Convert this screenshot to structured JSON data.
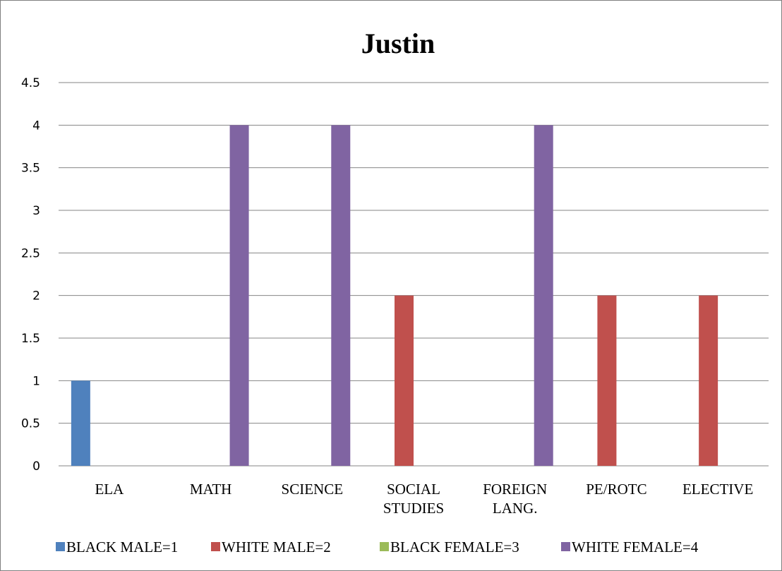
{
  "chart_data": {
    "type": "bar",
    "title": "Justin",
    "xlabel": "",
    "ylabel": "",
    "ylim": [
      0,
      4.5
    ],
    "yticks": [
      "0",
      "0.5",
      "1",
      "1.5",
      "2",
      "2.5",
      "3",
      "3.5",
      "4",
      "4.5"
    ],
    "grid": true,
    "legend_position": "bottom",
    "categories": [
      [
        "ELA"
      ],
      [
        "MATH"
      ],
      [
        "SCIENCE"
      ],
      [
        "SOCIAL",
        "STUDIES"
      ],
      [
        "FOREIGN",
        "LANG."
      ],
      [
        "PE/ROTC"
      ],
      [
        "ELECTIVE"
      ]
    ],
    "series": [
      {
        "name": "BLACK MALE=1",
        "color": "#4f81bd",
        "values": [
          1,
          0,
          0,
          0,
          0,
          0,
          0
        ]
      },
      {
        "name": "WHITE MALE=2",
        "color": "#c0504d",
        "values": [
          0,
          0,
          0,
          2,
          0,
          2,
          2
        ]
      },
      {
        "name": "BLACK FEMALE=3",
        "color": "#9bbb59",
        "values": [
          0,
          0,
          0,
          0,
          0,
          0,
          0
        ]
      },
      {
        "name": "WHITE FEMALE=4",
        "color": "#8064a2",
        "values": [
          0,
          4,
          4,
          0,
          4,
          0,
          0
        ]
      }
    ]
  }
}
